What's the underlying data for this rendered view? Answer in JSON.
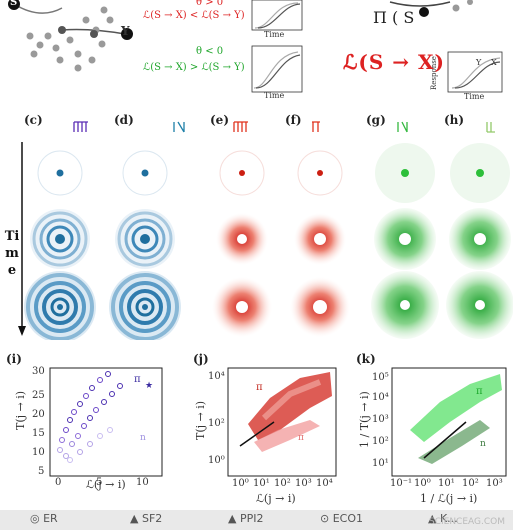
{
  "top": {
    "y_label": "Y",
    "s_label": "S",
    "red_cond_1": "θ > 0",
    "red_cond_2": "ℒ(S → X) < ℒ(S → Y)",
    "green_cond_1": "θ < 0",
    "green_cond_2": "ℒ(S → X) > ℒ(S → Y)",
    "response_label": "Response",
    "time_label": "Time",
    "inset_letters": [
      "Y",
      "X"
    ],
    "red_big_text": "ℒ(S → X)",
    "partial_text": "Π ( S"
  },
  "panels": {
    "labels": [
      "(c)",
      "(d)",
      "(e)",
      "(f)",
      "(g)",
      "(h)"
    ],
    "time_label_lines": [
      "Ti",
      "m",
      "e"
    ],
    "colors": {
      "blue": "#1f6f9e",
      "red": "#cc1f12",
      "green": "#2dbf3a"
    }
  },
  "plot_i": {
    "panel": "(i)",
    "ylabel": "T(j → i)",
    "xlabel": "ℒ(j → i)",
    "yticks": [
      "5",
      "10",
      "15",
      "20",
      "25",
      "30"
    ],
    "xticks": [
      "0",
      "5",
      "10"
    ]
  },
  "plot_j": {
    "panel": "(j)",
    "ylabel": "T(j → i)",
    "xlabel": "ℒ(j → i)",
    "yticks": [
      "10⁰",
      "10²",
      "10⁴"
    ],
    "xticks": [
      "10⁰",
      "10¹",
      "10²",
      "10³",
      "10⁴"
    ]
  },
  "plot_k": {
    "panel": "(k)",
    "ylabel": "1 / T(j → i)",
    "xlabel": "1 / ℒ(j → i)",
    "yticks": [
      "10¹",
      "10²",
      "10³",
      "10⁴",
      "10⁵"
    ],
    "xticks": [
      "10⁻¹",
      "10⁰",
      "10¹",
      "10²",
      "10³"
    ]
  },
  "legend": {
    "items": [
      "◎ ER",
      "▲ SF2",
      "▲ PPI2",
      "⊙ ECO1",
      "▲ K..."
    ]
  },
  "watermark": "SCIENCEAG.COM"
}
